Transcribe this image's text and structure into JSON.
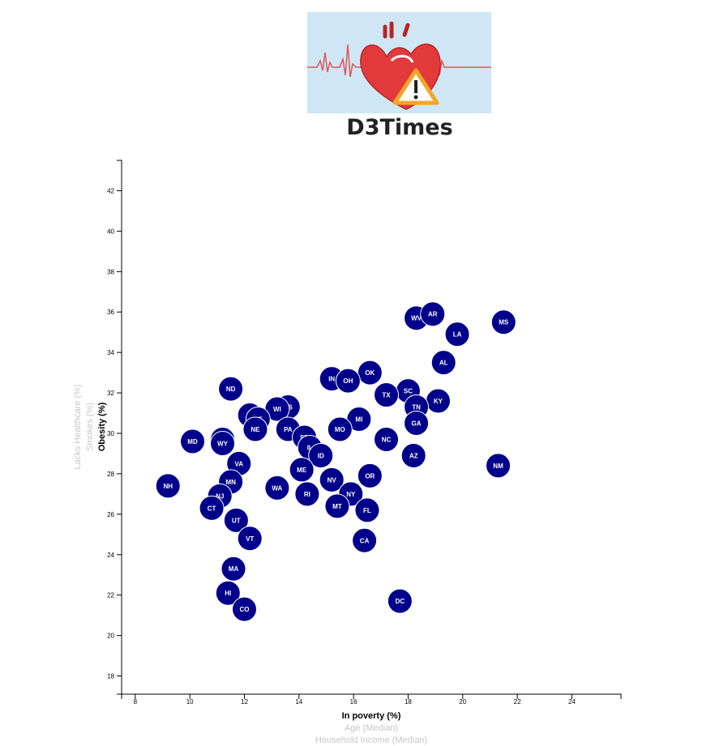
{
  "header": {
    "title": "D3Times",
    "logo_icon": "heart-warning-icon"
  },
  "colors": {
    "marker": "#00008b",
    "marker_text": "#ffffff",
    "logo_bg": "#cfe7f5",
    "heart": "#e23a3a",
    "warning": "#f4a62a"
  },
  "chart_data": {
    "type": "scatter",
    "xlabel": "In poverty (%)",
    "ylabel": "Obesity (%)",
    "x_axis_options": [
      "In poverty (%)",
      "Age (Median)",
      "Household Income (Median)"
    ],
    "y_axis_options": [
      "Obesity (%)",
      "Smokes (%)",
      "Lacks Healthcare (%)"
    ],
    "active_x": "In poverty (%)",
    "active_y": "Obesity (%)",
    "xlim": [
      7.5,
      25.8
    ],
    "ylim": [
      17.1,
      43.5
    ],
    "xticks": [
      8,
      10,
      12,
      14,
      16,
      18,
      20,
      22,
      24
    ],
    "yticks": [
      18,
      20,
      22,
      24,
      26,
      28,
      30,
      32,
      34,
      36,
      38,
      40,
      42
    ],
    "grid": false,
    "points": [
      {
        "label": "MS",
        "x": 21.5,
        "y": 35.5
      },
      {
        "label": "WV",
        "x": 18.3,
        "y": 35.7
      },
      {
        "label": "AR",
        "x": 18.9,
        "y": 35.9
      },
      {
        "label": "LA",
        "x": 19.8,
        "y": 34.9
      },
      {
        "label": "AL",
        "x": 19.3,
        "y": 33.5
      },
      {
        "label": "OK",
        "x": 16.6,
        "y": 33.0
      },
      {
        "label": "IN",
        "x": 15.2,
        "y": 32.7
      },
      {
        "label": "OH",
        "x": 15.8,
        "y": 32.6
      },
      {
        "label": "SC",
        "x": 18.0,
        "y": 32.1
      },
      {
        "label": "TX",
        "x": 17.2,
        "y": 31.9
      },
      {
        "label": "KY",
        "x": 19.1,
        "y": 31.6
      },
      {
        "label": "TN",
        "x": 18.3,
        "y": 31.3
      },
      {
        "label": "ND",
        "x": 11.5,
        "y": 32.2
      },
      {
        "label": "KS",
        "x": 13.6,
        "y": 31.3
      },
      {
        "label": "WI",
        "x": 13.2,
        "y": 31.2
      },
      {
        "label": "IA",
        "x": 12.2,
        "y": 30.9
      },
      {
        "label": "DE",
        "x": 12.5,
        "y": 30.7
      },
      {
        "label": "MI",
        "x": 16.2,
        "y": 30.7
      },
      {
        "label": "GA",
        "x": 18.3,
        "y": 30.5
      },
      {
        "label": "NE",
        "x": 12.4,
        "y": 30.2
      },
      {
        "label": "PA",
        "x": 13.6,
        "y": 30.2
      },
      {
        "label": "MO",
        "x": 15.5,
        "y": 30.2
      },
      {
        "label": "SD",
        "x": 14.2,
        "y": 29.8
      },
      {
        "label": "NC",
        "x": 17.2,
        "y": 29.7
      },
      {
        "label": "MD",
        "x": 10.1,
        "y": 29.6
      },
      {
        "label": "AK",
        "x": 11.2,
        "y": 29.7
      },
      {
        "label": "WY",
        "x": 11.2,
        "y": 29.5
      },
      {
        "label": "IL",
        "x": 14.4,
        "y": 29.3
      },
      {
        "label": "ID",
        "x": 14.8,
        "y": 28.9
      },
      {
        "label": "AZ",
        "x": 18.2,
        "y": 28.9
      },
      {
        "label": "VA",
        "x": 11.8,
        "y": 28.5
      },
      {
        "label": "NM",
        "x": 21.3,
        "y": 28.4
      },
      {
        "label": "ME",
        "x": 14.1,
        "y": 28.2
      },
      {
        "label": "OR",
        "x": 16.6,
        "y": 27.9
      },
      {
        "label": "NV",
        "x": 15.2,
        "y": 27.7
      },
      {
        "label": "MN",
        "x": 11.5,
        "y": 27.6
      },
      {
        "label": "NH",
        "x": 9.2,
        "y": 27.4
      },
      {
        "label": "WA",
        "x": 13.2,
        "y": 27.3
      },
      {
        "label": "RI",
        "x": 14.3,
        "y": 27.0
      },
      {
        "label": "NY",
        "x": 15.9,
        "y": 27.0
      },
      {
        "label": "NJ",
        "x": 11.1,
        "y": 26.9
      },
      {
        "label": "MT",
        "x": 15.4,
        "y": 26.4
      },
      {
        "label": "CT",
        "x": 10.8,
        "y": 26.3
      },
      {
        "label": "FL",
        "x": 16.5,
        "y": 26.2
      },
      {
        "label": "UT",
        "x": 11.7,
        "y": 25.7
      },
      {
        "label": "VT",
        "x": 12.2,
        "y": 24.8
      },
      {
        "label": "CA",
        "x": 16.4,
        "y": 24.7
      },
      {
        "label": "MA",
        "x": 11.6,
        "y": 23.3
      },
      {
        "label": "HI",
        "x": 11.4,
        "y": 22.1
      },
      {
        "label": "DC",
        "x": 17.7,
        "y": 21.7
      },
      {
        "label": "CO",
        "x": 12.0,
        "y": 21.3
      }
    ]
  }
}
